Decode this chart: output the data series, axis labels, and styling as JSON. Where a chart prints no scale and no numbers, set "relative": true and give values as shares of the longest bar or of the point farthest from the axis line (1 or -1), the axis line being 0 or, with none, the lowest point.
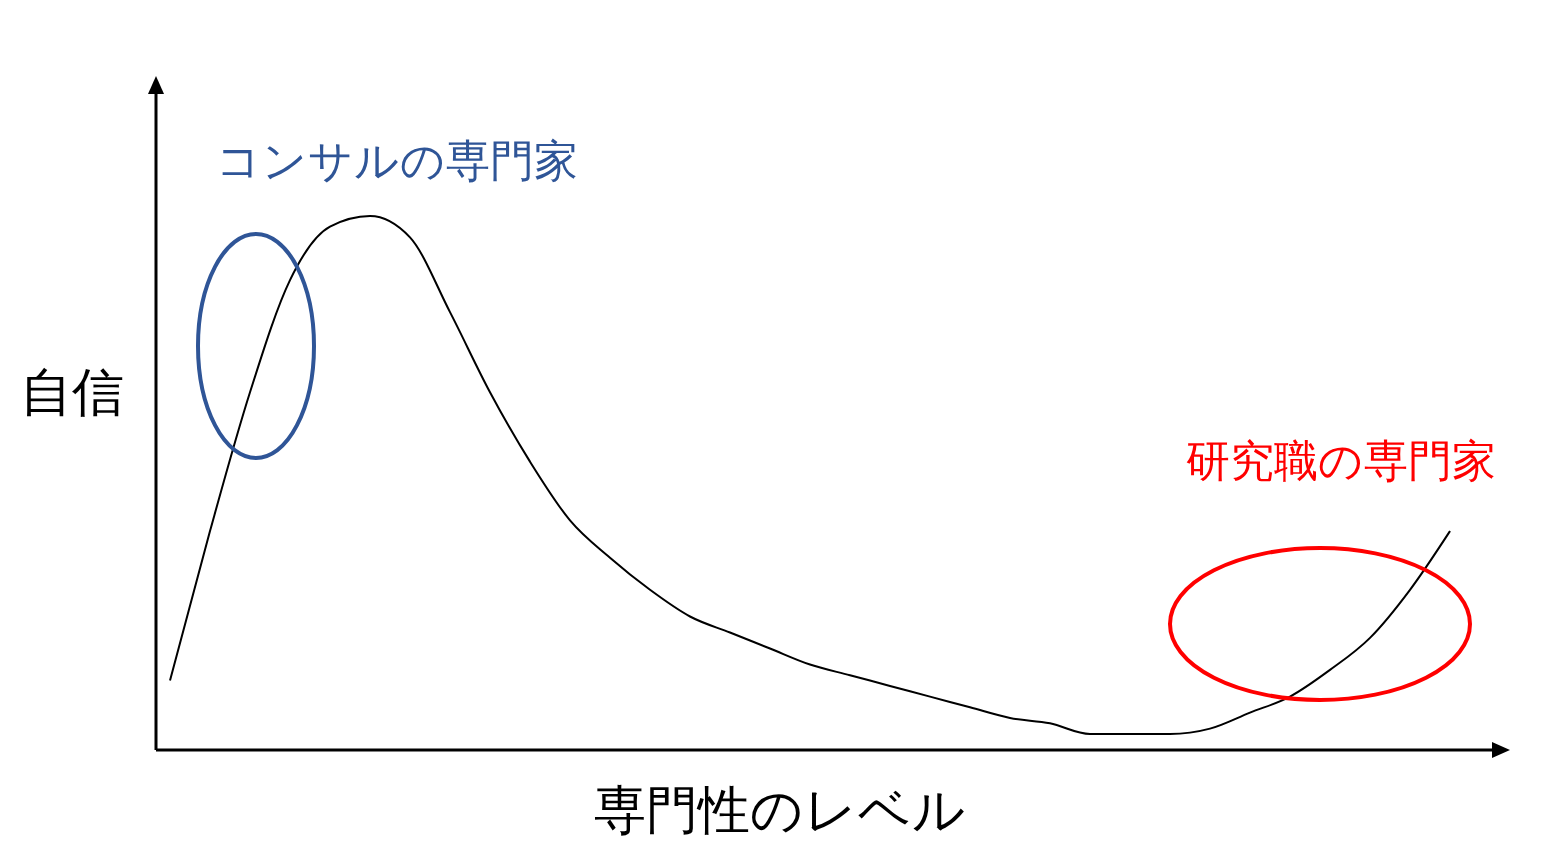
{
  "chart_data": {
    "type": "line",
    "relative": true,
    "xlabel": "専門性のレベル",
    "ylabel": "自信",
    "tick_labels": false,
    "grid": false,
    "marker": "none",
    "line_style": "solid",
    "annotations": [
      "コンサルの専門家",
      "研究職の専門家"
    ],
    "categories": [
      null,
      null,
      null,
      null,
      null,
      null,
      null,
      null,
      null,
      null,
      null,
      null,
      null,
      null,
      null,
      null,
      null,
      null,
      null,
      null,
      null,
      null,
      null,
      null,
      null,
      null,
      null,
      null,
      null,
      null,
      null,
      null,
      null
    ],
    "series": [
      {
        "color": "#000000",
        "values": [
          0.13,
          0.41,
          0.67,
          0.88,
          0.98,
          1,
          0.96,
          0.82,
          0.67,
          0.54,
          0.43,
          0.36,
          0.3,
          0.25,
          0.22,
          0.19,
          0.16,
          0.14,
          0.12,
          0.1,
          0.08,
          0.06,
          0.05,
          0.03,
          0.03,
          0.03,
          0.04,
          0.07,
          0.1,
          0.15,
          0.21,
          0.3,
          0.41
        ]
      }
    ]
  }
}
